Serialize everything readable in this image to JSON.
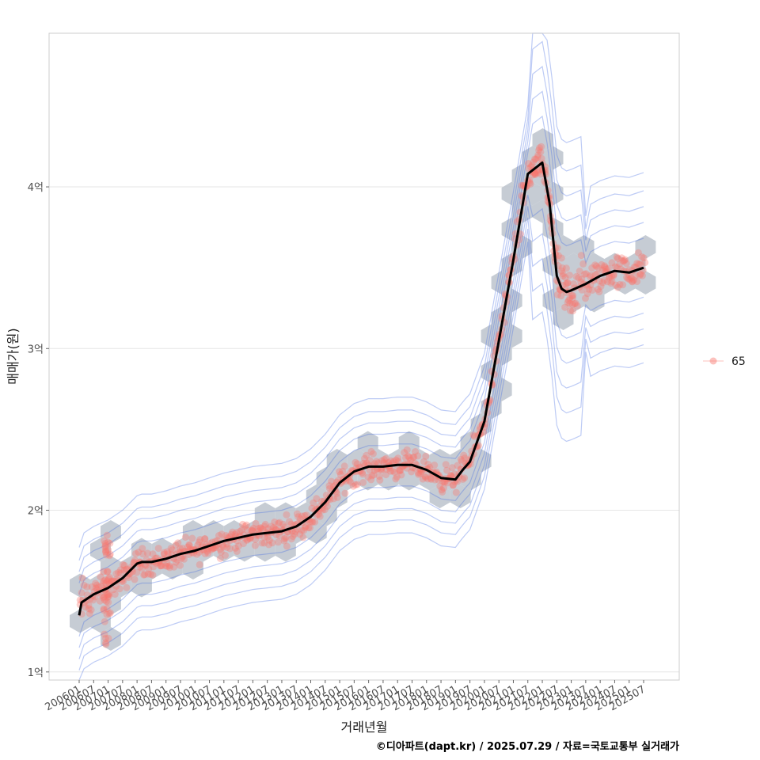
{
  "chart_data": {
    "type": "scatter",
    "xlabel": "거래년월",
    "ylabel": "매매가(원)",
    "caption": "©디아파트(dapt.kr) / 2025.07.29 / 자료=국토교통부 실거래가",
    "legend": {
      "position": "right",
      "entries": [
        "65"
      ]
    },
    "grid": true,
    "ylim": [
      0.95,
      4.95
    ],
    "y_ticks": [
      {
        "value": 1,
        "label": "1억"
      },
      {
        "value": 2,
        "label": "2억"
      },
      {
        "value": 3,
        "label": "3억"
      },
      {
        "value": 4,
        "label": "4억"
      }
    ],
    "x_ticks": [
      "200601",
      "200607",
      "200701",
      "200707",
      "200801",
      "200807",
      "200901",
      "200907",
      "201001",
      "201007",
      "201101",
      "201107",
      "201201",
      "201207",
      "201301",
      "201307",
      "201401",
      "201407",
      "201501",
      "201507",
      "201601",
      "201607",
      "201701",
      "201707",
      "201801",
      "201807",
      "201901",
      "201907",
      "202001",
      "202007",
      "202101",
      "202107",
      "202201",
      "202207",
      "202301",
      "202307",
      "202401",
      "202407",
      "202501",
      "202507"
    ],
    "series": [
      {
        "name": "65",
        "kind": "smoothed trend",
        "x": [
          "200601",
          "200602",
          "200607",
          "200701",
          "200707",
          "200801",
          "200803",
          "200807",
          "200901",
          "200907",
          "201001",
          "201007",
          "201101",
          "201107",
          "201201",
          "201207",
          "201301",
          "201307",
          "201401",
          "201407",
          "201501",
          "201507",
          "201601",
          "201607",
          "201701",
          "201707",
          "201801",
          "201807",
          "201901",
          "201904",
          "201907",
          "202001",
          "202007",
          "202101",
          "202107",
          "202201",
          "202204",
          "202207",
          "202209",
          "202211",
          "202301",
          "202307",
          "202401",
          "202407",
          "202501",
          "202507"
        ],
        "y": [
          1.35,
          1.43,
          1.48,
          1.52,
          1.58,
          1.67,
          1.68,
          1.68,
          1.7,
          1.73,
          1.75,
          1.78,
          1.81,
          1.83,
          1.85,
          1.86,
          1.87,
          1.9,
          1.96,
          2.05,
          2.17,
          2.24,
          2.27,
          2.27,
          2.28,
          2.28,
          2.25,
          2.2,
          2.19,
          2.25,
          2.3,
          2.55,
          3.05,
          3.55,
          4.08,
          4.15,
          3.9,
          3.45,
          3.37,
          3.35,
          3.36,
          3.4,
          3.45,
          3.48,
          3.47,
          3.5
        ]
      }
    ],
    "colors": {
      "points": "#f8766d",
      "hex_fill": "#bcc3cc",
      "contour": "#4169e1",
      "trend": "#000000",
      "grid": "#e6e6e6",
      "panel_border": "#cccccc"
    }
  }
}
